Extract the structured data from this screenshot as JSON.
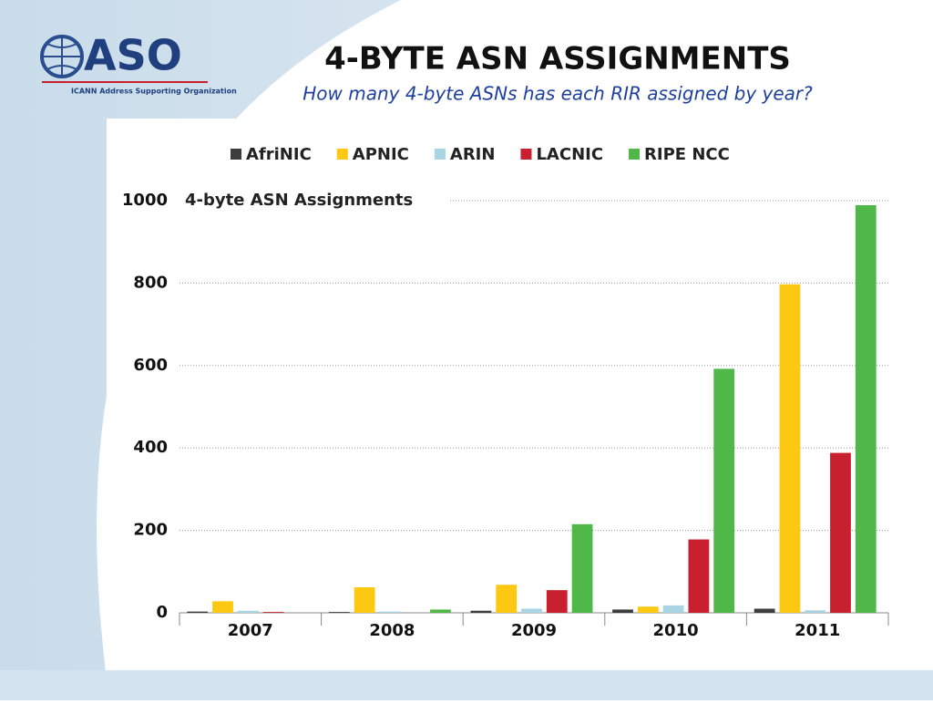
{
  "header": {
    "logo": "ASO",
    "logo_caption": "ICANN Address Supporting Organization",
    "title": "4-BYTE ASN ASSIGNMENTS",
    "subtitle": "How many 4-byte ASNs has each RIR assigned by year?"
  },
  "chart_data": {
    "type": "bar",
    "title": "4-byte ASN Assignments",
    "categories": [
      "2007",
      "2008",
      "2009",
      "2010",
      "2011"
    ],
    "series": [
      {
        "name": "AfriNIC",
        "color": "#3d3d3d",
        "values": [
          3,
          2,
          5,
          8,
          10
        ]
      },
      {
        "name": "APNIC",
        "color": "#fcc812",
        "values": [
          28,
          62,
          68,
          15,
          797
        ]
      },
      {
        "name": "ARIN",
        "color": "#a8d4e4",
        "values": [
          5,
          3,
          10,
          18,
          6
        ]
      },
      {
        "name": "LACNIC",
        "color": "#c8202f",
        "values": [
          2,
          0,
          55,
          178,
          388
        ]
      },
      {
        "name": "RIPE NCC",
        "color": "#50b848",
        "values": [
          0,
          8,
          215,
          592,
          989
        ]
      }
    ],
    "ylim": [
      0,
      1000
    ],
    "yticks": [
      0,
      200,
      400,
      600,
      800,
      1000
    ],
    "grid": true,
    "legend": "top"
  }
}
